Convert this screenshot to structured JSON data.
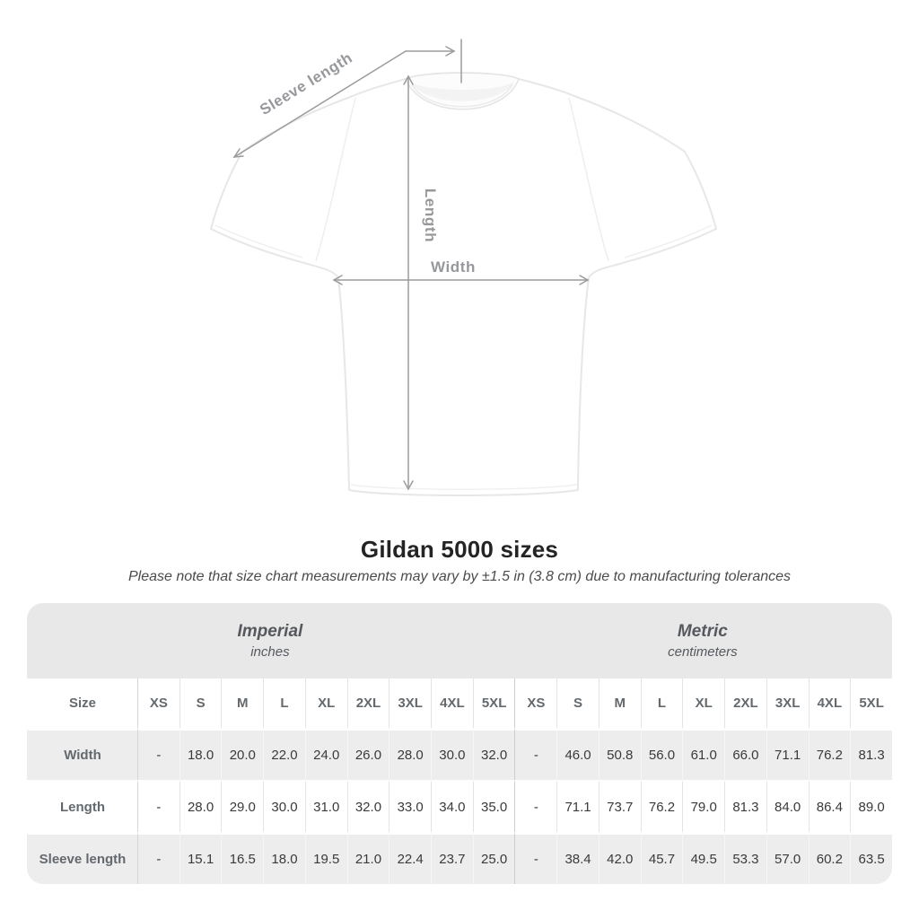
{
  "title": "Gildan 5000 sizes",
  "subtitle": "Please note that size chart measurements may vary by ±1.5 in (3.8 cm) due to manufacturing tolerances",
  "diagram": {
    "sleeve_length_label": "Sleeve length",
    "length_label": "Length",
    "width_label": "Width"
  },
  "table": {
    "size_header": "Size",
    "sizes": [
      "XS",
      "S",
      "M",
      "L",
      "XL",
      "2XL",
      "3XL",
      "4XL",
      "5XL"
    ],
    "sections": [
      {
        "label": "Imperial",
        "sublabel": "inches"
      },
      {
        "label": "Metric",
        "sublabel": "centimeters"
      }
    ],
    "rows": [
      {
        "label": "Width",
        "imperial": [
          "-",
          "18.0",
          "20.0",
          "22.0",
          "24.0",
          "26.0",
          "28.0",
          "30.0",
          "32.0"
        ],
        "metric": [
          "-",
          "46.0",
          "50.8",
          "56.0",
          "61.0",
          "66.0",
          "71.1",
          "76.2",
          "81.3"
        ]
      },
      {
        "label": "Length",
        "imperial": [
          "-",
          "28.0",
          "29.0",
          "30.0",
          "31.0",
          "32.0",
          "33.0",
          "34.0",
          "35.0"
        ],
        "metric": [
          "-",
          "71.1",
          "73.7",
          "76.2",
          "79.0",
          "81.3",
          "84.0",
          "86.4",
          "89.0"
        ]
      },
      {
        "label": "Sleeve length",
        "imperial": [
          "-",
          "15.1",
          "16.5",
          "18.0",
          "19.5",
          "21.0",
          "22.4",
          "23.7",
          "25.0"
        ],
        "metric": [
          "-",
          "38.4",
          "42.0",
          "45.7",
          "49.5",
          "53.3",
          "57.0",
          "60.2",
          "63.5"
        ]
      }
    ]
  },
  "colors": {
    "band_gray": "#e8e8e8",
    "row_stripe_gray": "#ededed",
    "arrow_gray": "#9b9b9b",
    "heading_text": "#64696e",
    "value_text": "#3a3a3c"
  },
  "chart_data": {
    "type": "table",
    "title": "Gildan 5000 sizes",
    "note": "Please note that size chart measurements may vary by ±1.5 in (3.8 cm) due to manufacturing tolerances",
    "size_columns": [
      "XS",
      "S",
      "M",
      "L",
      "XL",
      "2XL",
      "3XL",
      "4XL",
      "5XL"
    ],
    "units": {
      "imperial": "inches",
      "metric": "centimeters"
    },
    "rows_imperial": [
      {
        "measurement": "Width",
        "values": [
          "-",
          18.0,
          20.0,
          22.0,
          24.0,
          26.0,
          28.0,
          30.0,
          32.0
        ]
      },
      {
        "measurement": "Length",
        "values": [
          "-",
          28.0,
          29.0,
          30.0,
          31.0,
          32.0,
          33.0,
          34.0,
          35.0
        ]
      },
      {
        "measurement": "Sleeve length",
        "values": [
          "-",
          15.1,
          16.5,
          18.0,
          19.5,
          21.0,
          22.4,
          23.7,
          25.0
        ]
      }
    ],
    "rows_metric": [
      {
        "measurement": "Width",
        "values": [
          "-",
          46.0,
          50.8,
          56.0,
          61.0,
          66.0,
          71.1,
          76.2,
          81.3
        ]
      },
      {
        "measurement": "Length",
        "values": [
          "-",
          71.1,
          73.7,
          76.2,
          79.0,
          81.3,
          84.0,
          86.4,
          89.0
        ]
      },
      {
        "measurement": "Sleeve length",
        "values": [
          "-",
          38.4,
          42.0,
          45.7,
          49.5,
          53.3,
          57.0,
          60.2,
          63.5
        ]
      }
    ]
  }
}
